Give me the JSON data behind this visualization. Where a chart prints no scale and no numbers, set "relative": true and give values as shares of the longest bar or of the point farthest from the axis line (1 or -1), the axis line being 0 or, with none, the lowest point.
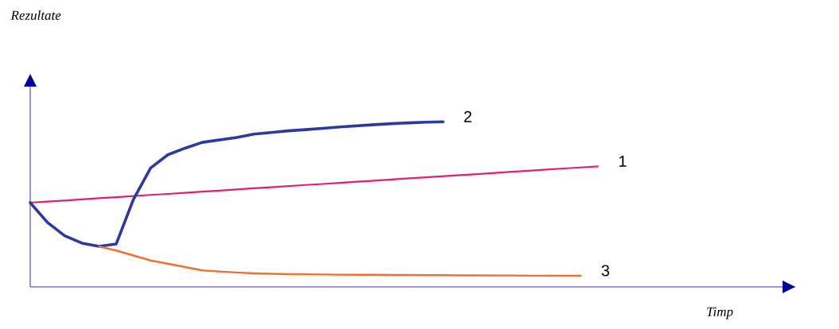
{
  "chart_data": {
    "type": "line",
    "relative": true,
    "annotations": [
      "Rezultate",
      "Timp"
    ],
    "tick_labels": false,
    "categories": [
      null,
      null,
      null,
      null,
      null,
      null,
      null,
      null,
      null,
      null,
      null,
      null,
      null,
      null,
      null,
      null,
      null,
      null,
      null,
      null,
      null,
      null,
      null,
      null,
      null,
      null,
      null,
      null,
      null,
      null,
      null,
      null,
      null,
      null
    ],
    "series": [
      {
        "name": "1",
        "color": "#e0206e",
        "values": [
          0.51,
          0.517,
          0.523,
          0.53,
          0.537,
          0.543,
          0.55,
          0.557,
          0.563,
          0.57,
          0.577,
          0.583,
          0.59,
          0.597,
          0.603,
          0.61,
          0.617,
          0.623,
          0.63,
          0.637,
          0.643,
          0.65,
          0.657,
          0.663,
          0.67,
          0.677,
          0.683,
          0.69,
          0.697,
          0.703,
          0.71,
          0.717,
          0.723,
          0.73
        ]
      },
      {
        "name": "2",
        "color": "#2a3a9e",
        "values": [
          0.51,
          0.39,
          0.31,
          0.265,
          0.245,
          0.26,
          0.53,
          0.72,
          0.8,
          0.84,
          0.875,
          0.89,
          0.905,
          0.925,
          0.935,
          0.945,
          0.952,
          0.96,
          0.968,
          0.975,
          0.982,
          0.988,
          0.993,
          0.997,
          1.0,
          null,
          null,
          null,
          null,
          null,
          null,
          null,
          null,
          null
        ]
      },
      {
        "name": "3",
        "color": "#f07030",
        "values": [
          null,
          null,
          null,
          null,
          0.245,
          0.22,
          0.19,
          0.16,
          0.14,
          0.12,
          0.1,
          0.093,
          0.087,
          0.082,
          0.079,
          0.077,
          0.076,
          0.075,
          0.074,
          0.073,
          0.073,
          0.072,
          0.072,
          0.071,
          0.071,
          0.07,
          0.07,
          0.069,
          0.069,
          0.068,
          0.068,
          0.067,
          0.067,
          null
        ]
      }
    ]
  }
}
